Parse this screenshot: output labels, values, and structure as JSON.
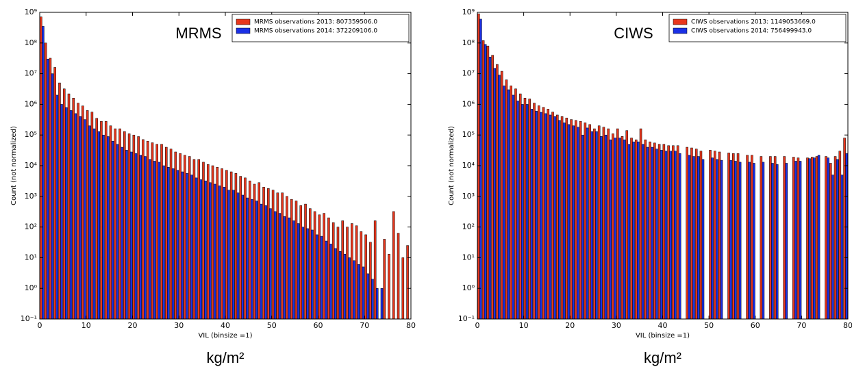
{
  "chart_data": [
    {
      "type": "histogram",
      "title": "MRMS",
      "x_label": "VIL (binsize =1)",
      "y_label": "Count (not normalized)",
      "unit_label": "kg/m²",
      "log_y": true,
      "legend": "upper right",
      "xlim": [
        0,
        80
      ],
      "ylim": [
        0.1,
        1000000000
      ],
      "xticks": [
        0,
        10,
        20,
        30,
        40,
        50,
        60,
        70,
        80
      ],
      "yticks": [
        {
          "value": 0.1,
          "label": "10⁻¹"
        },
        {
          "value": 1,
          "label": "10⁰"
        },
        {
          "value": 10,
          "label": "10¹"
        },
        {
          "value": 100,
          "label": "10²"
        },
        {
          "value": 1000,
          "label": "10³"
        },
        {
          "value": 10000,
          "label": "10⁴"
        },
        {
          "value": 100000,
          "label": "10⁵"
        },
        {
          "value": 1000000,
          "label": "10⁶"
        },
        {
          "value": 10000000,
          "label": "10⁷"
        },
        {
          "value": 100000000,
          "label": "10⁸"
        },
        {
          "value": 1000000000,
          "label": "10⁹"
        }
      ],
      "bins": [
        0,
        1,
        2,
        3,
        4,
        5,
        6,
        7,
        8,
        9,
        10,
        11,
        12,
        13,
        14,
        15,
        16,
        17,
        18,
        19,
        20,
        21,
        22,
        23,
        24,
        25,
        26,
        27,
        28,
        29,
        30,
        31,
        32,
        33,
        34,
        35,
        36,
        37,
        38,
        39,
        40,
        41,
        42,
        43,
        44,
        45,
        46,
        47,
        48,
        49,
        50,
        51,
        52,
        53,
        54,
        55,
        56,
        57,
        58,
        59,
        60,
        61,
        62,
        63,
        64,
        65,
        66,
        67,
        68,
        69,
        70,
        71,
        72,
        73,
        74,
        75,
        76,
        77,
        78,
        79,
        80
      ],
      "series": [
        {
          "name": "MRMS observations 2013: 807359506.0",
          "color": "#e8361c",
          "values": [
            710000000,
            100000000,
            32000000,
            16000000,
            5000000,
            3200000,
            2200000,
            1600000,
            1100000,
            890000,
            630000,
            560000,
            350000,
            280000,
            280000,
            200000,
            160000,
            160000,
            130000,
            110000,
            100000,
            89000,
            71000,
            63000,
            56000,
            50000,
            50000,
            40000,
            35000,
            28000,
            25000,
            22000,
            20000,
            16000,
            16000,
            13000,
            11000,
            10000,
            8900,
            8000,
            7100,
            6300,
            5600,
            4500,
            4000,
            3200,
            2500,
            2800,
            2000,
            1800,
            1600,
            1300,
            1300,
            1000,
            800,
            710,
            500,
            560,
            400,
            320,
            250,
            280,
            200,
            140,
            100,
            160,
            100,
            130,
            110,
            71,
            56,
            32,
            160,
            null,
            40,
            13,
            320,
            63,
            10,
            25
          ]
        },
        {
          "name": "MRMS observations 2014: 372209106.0",
          "color": "#1a30e6",
          "values": [
            350000000,
            30000000,
            10000000,
            2000000,
            1000000,
            790000,
            630000,
            500000,
            400000,
            320000,
            200000,
            160000,
            130000,
            100000,
            89000,
            63000,
            50000,
            40000,
            32000,
            28000,
            25000,
            22000,
            20000,
            16000,
            14000,
            13000,
            10000,
            8900,
            8000,
            7100,
            6300,
            5600,
            5000,
            4000,
            3500,
            3200,
            2800,
            2500,
            2200,
            2000,
            1600,
            1600,
            1300,
            1100,
            890,
            800,
            710,
            560,
            500,
            400,
            320,
            280,
            220,
            200,
            160,
            130,
            100,
            89,
            80,
            56,
            50,
            35,
            28,
            20,
            16,
            13,
            10,
            8,
            6,
            5,
            3,
            2,
            1,
            1,
            null,
            null,
            null,
            null,
            null,
            null
          ]
        }
      ]
    },
    {
      "type": "histogram",
      "title": "CIWS",
      "x_label": "VIL (binsize =1)",
      "y_label": "Count (not normalized)",
      "unit_label": "kg/m²",
      "log_y": true,
      "legend": "upper right",
      "xlim": [
        0,
        80
      ],
      "ylim": [
        0.1,
        1000000000
      ],
      "xticks": [
        0,
        10,
        20,
        30,
        40,
        50,
        60,
        70,
        80
      ],
      "yticks": [
        {
          "value": 0.1,
          "label": "10⁻¹"
        },
        {
          "value": 1,
          "label": "10⁰"
        },
        {
          "value": 10,
          "label": "10¹"
        },
        {
          "value": 100,
          "label": "10²"
        },
        {
          "value": 1000,
          "label": "10³"
        },
        {
          "value": 10000,
          "label": "10⁴"
        },
        {
          "value": 100000,
          "label": "10⁵"
        },
        {
          "value": 1000000,
          "label": "10⁶"
        },
        {
          "value": 10000000,
          "label": "10⁷"
        },
        {
          "value": 100000000,
          "label": "10⁸"
        },
        {
          "value": 1000000000,
          "label": "10⁹"
        }
      ],
      "bins": [
        0,
        1,
        2,
        3,
        4,
        5,
        6,
        7,
        8,
        9,
        10,
        11,
        12,
        13,
        14,
        15,
        16,
        17,
        18,
        19,
        20,
        21,
        22,
        23,
        24,
        25,
        26,
        27,
        28,
        29,
        30,
        31,
        32,
        33,
        34,
        35,
        36,
        37,
        38,
        39,
        40,
        41,
        42,
        43,
        44,
        45,
        46,
        47,
        48,
        49,
        50,
        51,
        52,
        53,
        54,
        55,
        56,
        57,
        58,
        59,
        60,
        61,
        62,
        63,
        64,
        65,
        66,
        67,
        68,
        69,
        70,
        71,
        72,
        73,
        74,
        75,
        76,
        77,
        78,
        79,
        80
      ],
      "series": [
        {
          "name": "CIWS observations 2013: 1149053669.0",
          "color": "#e8361c",
          "values": [
            900000000,
            120000000,
            80000000,
            40000000,
            20000000,
            12000000,
            6300000,
            4000000,
            3200000,
            2200000,
            1600000,
            1500000,
            1100000,
            900000,
            800000,
            700000,
            560000,
            450000,
            400000,
            360000,
            320000,
            300000,
            280000,
            250000,
            220000,
            160000,
            200000,
            180000,
            160000,
            110000,
            160000,
            90000,
            140000,
            80000,
            70000,
            160000,
            70000,
            60000,
            55000,
            50000,
            50000,
            45000,
            45000,
            45000,
            null,
            40000,
            38000,
            35000,
            30000,
            null,
            32000,
            30000,
            28000,
            null,
            26000,
            25000,
            25000,
            null,
            22000,
            22000,
            null,
            20000,
            null,
            20000,
            20000,
            null,
            20000,
            null,
            19000,
            18000,
            null,
            18000,
            19000,
            20000,
            null,
            20000,
            12000,
            20000,
            30000,
            80000
          ]
        },
        {
          "name": "CIWS observations 2014: 756499943.0",
          "color": "#1a30e6",
          "values": [
            600000000,
            90000000,
            35000000,
            15000000,
            9000000,
            4000000,
            3000000,
            2000000,
            1300000,
            1000000,
            1000000,
            700000,
            600000,
            550000,
            500000,
            450000,
            400000,
            300000,
            250000,
            220000,
            200000,
            180000,
            100000,
            170000,
            130000,
            130000,
            90000,
            100000,
            70000,
            80000,
            80000,
            70000,
            50000,
            60000,
            60000,
            50000,
            40000,
            40000,
            35000,
            32000,
            30000,
            30000,
            30000,
            25000,
            null,
            22000,
            20000,
            20000,
            16000,
            null,
            18000,
            16000,
            15000,
            null,
            15000,
            14000,
            13000,
            null,
            13000,
            12000,
            null,
            13000,
            null,
            12000,
            11000,
            null,
            12000,
            null,
            14000,
            14000,
            null,
            17000,
            18000,
            22000,
            null,
            18000,
            5000,
            16000,
            5000,
            25000
          ]
        }
      ]
    }
  ]
}
